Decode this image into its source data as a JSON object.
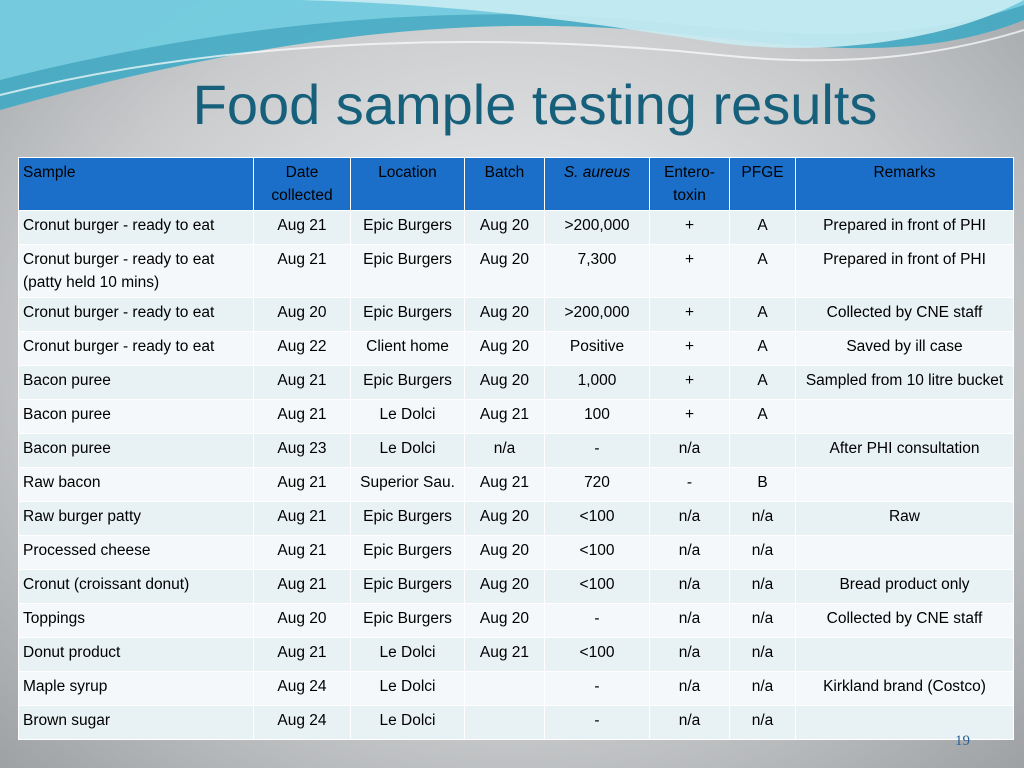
{
  "title": "Food sample testing results",
  "table": {
    "header": [
      "Sample",
      "Date collected",
      "Location",
      "Batch",
      "S. aureus",
      "Entero-toxin",
      "PFGE",
      "Remarks"
    ],
    "rows": [
      [
        "Cronut burger - ready to eat",
        "Aug 21",
        "Epic Burgers",
        "Aug 20",
        ">200,000",
        "+",
        "A",
        "Prepared in front of PHI"
      ],
      [
        "Cronut burger - ready to eat (patty held 10 mins)",
        "Aug 21",
        "Epic Burgers",
        "Aug 20",
        "7,300",
        "+",
        "A",
        "Prepared in front of PHI"
      ],
      [
        "Cronut burger - ready to eat",
        "Aug 20",
        "Epic Burgers",
        "Aug 20",
        ">200,000",
        "+",
        "A",
        "Collected by CNE staff"
      ],
      [
        "Cronut burger - ready to eat",
        "Aug 22",
        "Client home",
        "Aug 20",
        "Positive",
        "+",
        "A",
        "Saved by ill case"
      ],
      [
        "Bacon puree",
        "Aug 21",
        "Epic Burgers",
        "Aug 20",
        "1,000",
        "+",
        "A",
        "Sampled from 10 litre bucket"
      ],
      [
        "Bacon puree",
        "Aug 21",
        "Le Dolci",
        "Aug 21",
        "100",
        "+",
        "A",
        null
      ],
      [
        "Bacon puree",
        "Aug 23",
        "Le Dolci",
        "n/a",
        "-",
        "n/a",
        null,
        "After PHI consultation"
      ],
      [
        "Raw bacon",
        "Aug 21",
        "Superior Sau.",
        "Aug 21",
        "720",
        "-",
        "B",
        null
      ],
      [
        "Raw burger patty",
        "Aug 21",
        "Epic Burgers",
        "Aug 20",
        "<100",
        "n/a",
        "n/a",
        "Raw"
      ],
      [
        "Processed cheese",
        "Aug 21",
        "Epic Burgers",
        "Aug 20",
        "<100",
        "n/a",
        "n/a",
        null
      ],
      [
        "Cronut (croissant donut)",
        "Aug 21",
        "Epic Burgers",
        "Aug 20",
        "<100",
        "n/a",
        "n/a",
        "Bread product only"
      ],
      [
        "Toppings",
        "Aug 20",
        "Epic Burgers",
        "Aug 20",
        "-",
        "n/a",
        "n/a",
        "Collected by CNE staff"
      ],
      [
        "Donut product",
        "Aug 21",
        "Le Dolci",
        "Aug 21",
        "<100",
        "n/a",
        "n/a",
        null
      ],
      [
        "Maple syrup",
        "Aug 24",
        "Le Dolci",
        null,
        "-",
        "n/a",
        "n/a",
        "Kirkland brand (Costco)"
      ],
      [
        "Brown sugar",
        "Aug 24",
        "Le Dolci",
        null,
        "-",
        "n/a",
        "n/a",
        null
      ]
    ]
  },
  "page_number": "19"
}
